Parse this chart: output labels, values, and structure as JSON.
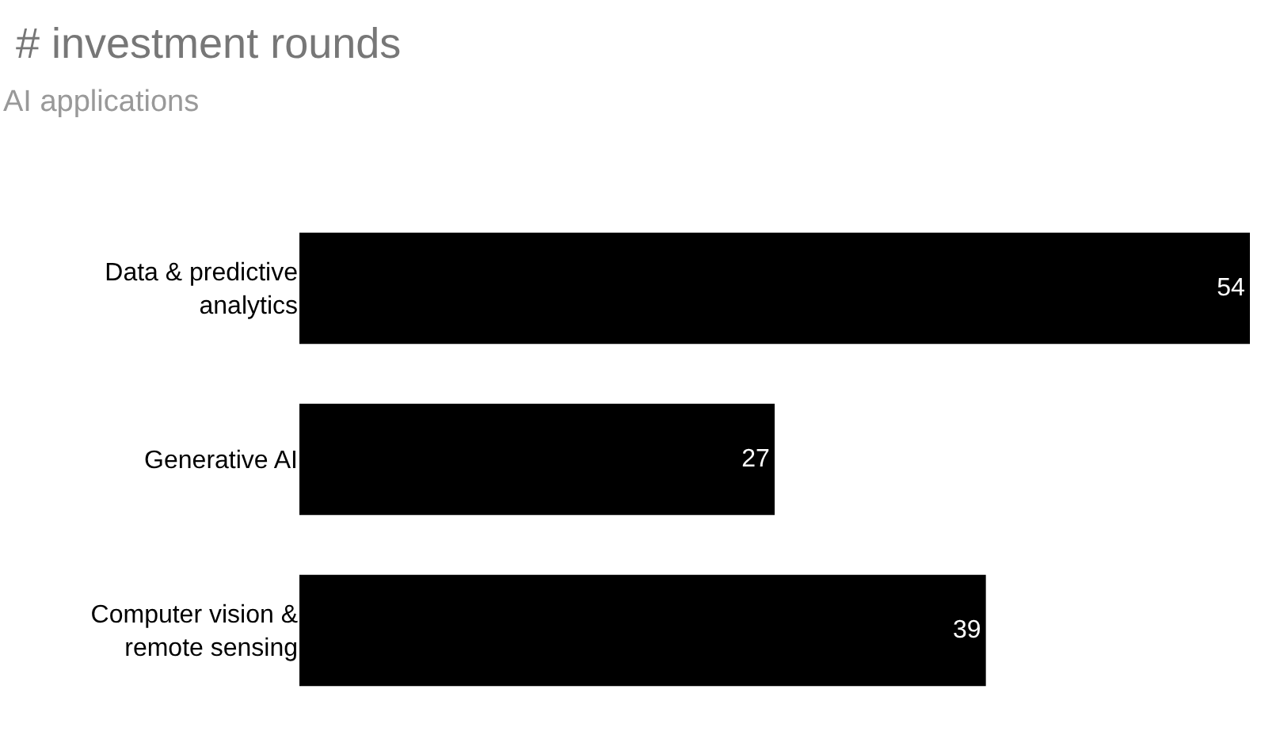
{
  "chart_data": {
    "type": "bar",
    "title": "# investment rounds",
    "subtitle": "AI applications",
    "orientation": "horizontal",
    "categories": [
      "Data & predictive analytics",
      "Generative AI",
      "Computer vision & remote sensing"
    ],
    "values": [
      54,
      27,
      39
    ],
    "color": "#000000",
    "data_labels": true,
    "relative": false,
    "grid": false,
    "legend": false
  }
}
